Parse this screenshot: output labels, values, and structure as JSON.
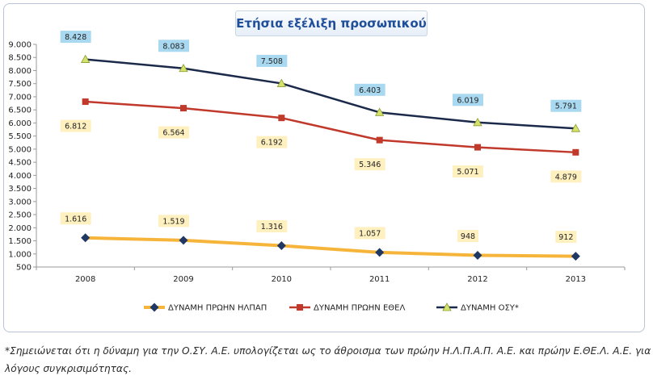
{
  "chart_data": {
    "type": "line",
    "title": "Ετήσια εξέλιξη προσωπικού",
    "categories": [
      "2008",
      "2009",
      "2010",
      "2011",
      "2012",
      "2013"
    ],
    "ylim": [
      500,
      9000
    ],
    "yticks": [
      "500",
      "1.000",
      "1.500",
      "2.000",
      "2.500",
      "3.000",
      "3.500",
      "4.000",
      "4.500",
      "5.000",
      "5.500",
      "6.000",
      "6.500",
      "7.000",
      "7.500",
      "8.000",
      "8.500",
      "9.000"
    ],
    "grid": false,
    "legend_position": "bottom",
    "series": [
      {
        "name": "ΔΥΝΑΜΗ ΠΡΩΗΝ ΗΛΠΑΠ",
        "values": [
          1616,
          1519,
          1316,
          1057,
          948,
          912
        ],
        "labels": [
          "1.616",
          "1.519",
          "1.316",
          "1.057",
          "948",
          "912"
        ],
        "line_color": "#f6b53a",
        "marker_color": "#1f3864",
        "marker": "diamond",
        "label_bg": "#fff0c0"
      },
      {
        "name": "ΔΥΝΑΜΗ ΠΡΩΗΝ ΕΘΕΛ",
        "values": [
          6812,
          6564,
          6192,
          5346,
          5071,
          4879
        ],
        "labels": [
          "6.812",
          "6.564",
          "6.192",
          "5.346",
          "5.071",
          "4.879"
        ],
        "line_color": "#c0392b",
        "marker_color": "#c0392b",
        "marker": "square",
        "label_bg": "#fff0c0"
      },
      {
        "name": "ΔΥΝΑΜΗ ΟΣΥ*",
        "values": [
          8428,
          8083,
          7508,
          6403,
          6019,
          5791
        ],
        "labels": [
          "8.428",
          "8.083",
          "7.508",
          "6.403",
          "6.019",
          "5.791"
        ],
        "line_color": "#1b2a4a",
        "marker_color": "#d6e36a",
        "marker": "triangle",
        "label_bg": "#a9d9f0"
      }
    ]
  },
  "footnote": "*Σημειώνεται ότι η δύναμη για την Ο.ΣΥ. Α.Ε. υπολογίζεται ως το άθροισμα των πρώην Η.Λ.Π.Α.Π. Α.Ε. και πρώην Ε.ΘΕ.Λ. Α.Ε. για λόγους συγκρισιμότητας."
}
